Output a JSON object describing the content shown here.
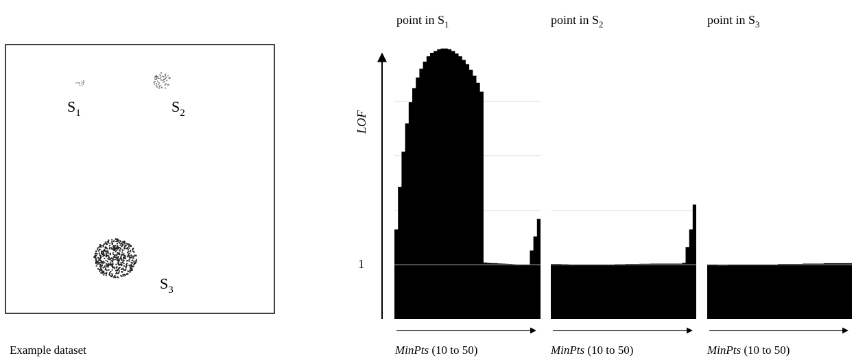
{
  "dataset": {
    "caption": "Example dataset",
    "clusters": [
      {
        "label": "S",
        "sub": "1",
        "point_count": 12
      },
      {
        "label": "S",
        "sub": "2",
        "point_count": 60
      },
      {
        "label": "S",
        "sub": "3",
        "point_count": 500
      }
    ]
  },
  "chart_data": {
    "type": "area",
    "ylabel": "LOF",
    "y_tick": "1",
    "panels": [
      {
        "title_main": "point in S",
        "title_sub": "1",
        "xlabel_italic": "MinPts",
        "xlabel_rest": " (10 to 50)",
        "minpts": [
          10,
          11,
          12,
          13,
          14,
          15,
          16,
          17,
          18,
          19,
          20,
          21,
          22,
          23,
          24,
          25,
          26,
          27,
          28,
          29,
          30,
          31,
          32,
          33,
          34,
          35,
          36,
          37,
          38,
          39,
          40,
          41,
          42,
          43,
          44,
          45,
          46,
          47,
          48,
          49,
          50
        ],
        "lof": [
          2.0,
          3.2,
          4.2,
          5.0,
          5.6,
          6.0,
          6.3,
          6.55,
          6.75,
          6.9,
          7.0,
          7.05,
          7.1,
          7.12,
          7.12,
          7.1,
          7.05,
          6.98,
          6.9,
          6.8,
          6.68,
          6.52,
          6.35,
          6.15,
          5.9,
          1.06,
          1.05,
          1.045,
          1.04,
          1.035,
          1.03,
          1.025,
          1.02,
          1.015,
          1.01,
          1.005,
          1.0,
          1.0,
          1.4,
          1.8,
          2.3
        ]
      },
      {
        "title_main": "point in S",
        "title_sub": "2",
        "xlabel_italic": "MinPts",
        "xlabel_rest": " (10 to 50)",
        "minpts": [
          10,
          11,
          12,
          13,
          14,
          15,
          16,
          17,
          18,
          19,
          20,
          21,
          22,
          23,
          24,
          25,
          26,
          27,
          28,
          29,
          30,
          31,
          32,
          33,
          34,
          35,
          36,
          37,
          38,
          39,
          40,
          41,
          42,
          43,
          44,
          45,
          46,
          47,
          48,
          49,
          50
        ],
        "lof": [
          1.02,
          1.02,
          1.02,
          1.015,
          1.015,
          1.01,
          1.01,
          1.01,
          1.01,
          1.005,
          1.0,
          1.0,
          1.005,
          1.01,
          1.01,
          1.01,
          1.01,
          1.01,
          1.015,
          1.015,
          1.015,
          1.02,
          1.02,
          1.02,
          1.02,
          1.025,
          1.025,
          1.025,
          1.03,
          1.03,
          1.03,
          1.03,
          1.03,
          1.03,
          1.03,
          1.03,
          1.03,
          1.05,
          1.5,
          2.0,
          2.7
        ]
      },
      {
        "title_main": "point in S",
        "title_sub": "3",
        "xlabel_italic": "MinPts",
        "xlabel_rest": " (10 to 50)",
        "minpts": [
          10,
          11,
          12,
          13,
          14,
          15,
          16,
          17,
          18,
          19,
          20,
          21,
          22,
          23,
          24,
          25,
          26,
          27,
          28,
          29,
          30,
          31,
          32,
          33,
          34,
          35,
          36,
          37,
          38,
          39,
          40,
          41,
          42,
          43,
          44,
          45,
          46,
          47,
          48,
          49,
          50
        ],
        "lof": [
          1.0,
          0.99,
          0.99,
          0.985,
          0.985,
          0.985,
          0.99,
          0.99,
          0.99,
          0.99,
          1.0,
          1.0,
          1.0,
          1.0,
          1.01,
          1.01,
          1.01,
          1.01,
          1.01,
          1.01,
          1.02,
          1.02,
          1.02,
          1.02,
          1.02,
          1.02,
          1.02,
          1.03,
          1.03,
          1.03,
          1.03,
          1.03,
          1.03,
          1.04,
          1.04,
          1.04,
          1.04,
          1.04,
          1.04,
          1.04,
          1.04
        ]
      }
    ]
  }
}
